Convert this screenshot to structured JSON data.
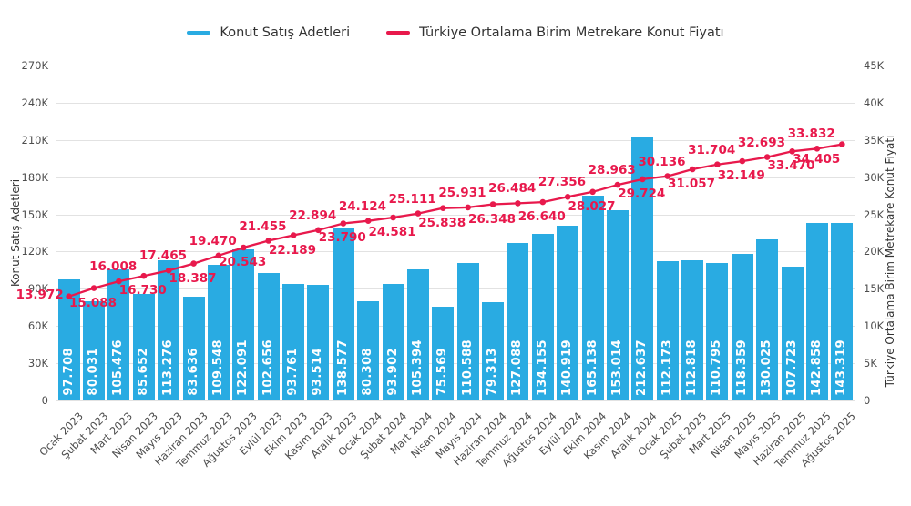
{
  "chart_data": {
    "type": "bar+line",
    "categories": [
      "Ocak 2023",
      "Şubat 2023",
      "Mart 2023",
      "Nisan 2023",
      "Mayıs 2023",
      "Haziran 2023",
      "Temmuz 2023",
      "Ağustos 2023",
      "Eylül 2023",
      "Ekim 2023",
      "Kasım 2023",
      "Aralık 2023",
      "Ocak 2024",
      "Şubat 2024",
      "Mart 2024",
      "Nisan 2024",
      "Mayıs 2024",
      "Haziran 2024",
      "Temmuz 2024",
      "Ağustos 2024",
      "Eylül 2024",
      "Ekim 2024",
      "Kasım 2024",
      "Aralık 2024",
      "Ocak 2025",
      "Şubat 2025",
      "Mart 2025",
      "Nisan 2025",
      "Mayıs 2025",
      "Haziran 2025",
      "Temmuz 2025",
      "Ağustos 2025"
    ],
    "series": [
      {
        "name": "Konut Satış Adetleri",
        "type": "bar",
        "axis": "left",
        "color": "#29abe2",
        "values": [
          97708,
          80031,
          105476,
          85652,
          113276,
          83636,
          109548,
          122091,
          102656,
          93761,
          93514,
          138577,
          80308,
          93902,
          105394,
          75569,
          110588,
          79313,
          127088,
          134155,
          140919,
          165138,
          153014,
          212637,
          112173,
          112818,
          110795,
          118359,
          130025,
          107723,
          142858,
          143319
        ]
      },
      {
        "name": "Türkiye Ortalama Birim Metrekare Konut Fiyatı",
        "type": "line",
        "axis": "right",
        "color": "#e8194c",
        "values": [
          13972,
          15088,
          16008,
          16730,
          17465,
          18387,
          19470,
          20543,
          21455,
          22189,
          22894,
          23790,
          24124,
          24581,
          25111,
          25838,
          25931,
          26348,
          26484,
          26640,
          27356,
          28027,
          28963,
          29724,
          30136,
          31057,
          31704,
          32149,
          32693,
          33470,
          33832,
          34405
        ]
      }
    ],
    "left_axis": {
      "label": "Konut Satış Adetleri",
      "min": 0,
      "max": 270000,
      "tick_step": 30000,
      "tick_labels": [
        "0",
        "30K",
        "60K",
        "90K",
        "120K",
        "150K",
        "180K",
        "210K",
        "240K",
        "270K"
      ]
    },
    "right_axis": {
      "label": "Türkiye Ortalama Birim Metrekare Konut Fiyatı",
      "min": 0,
      "max": 45000,
      "tick_step": 5000,
      "tick_labels": [
        "0",
        "5K",
        "10K",
        "15K",
        "20K",
        "25K",
        "30K",
        "35K",
        "40K",
        "45K"
      ]
    },
    "grid": true,
    "legend_position": "top-center",
    "value_label_format": "thousands-dot",
    "colors": {
      "grid": "#e2e2e2",
      "tick_text": "#4d4d4d",
      "axis_title_text": "#333333",
      "bar_value_text": "#ffffff",
      "background": "#ffffff"
    }
  }
}
